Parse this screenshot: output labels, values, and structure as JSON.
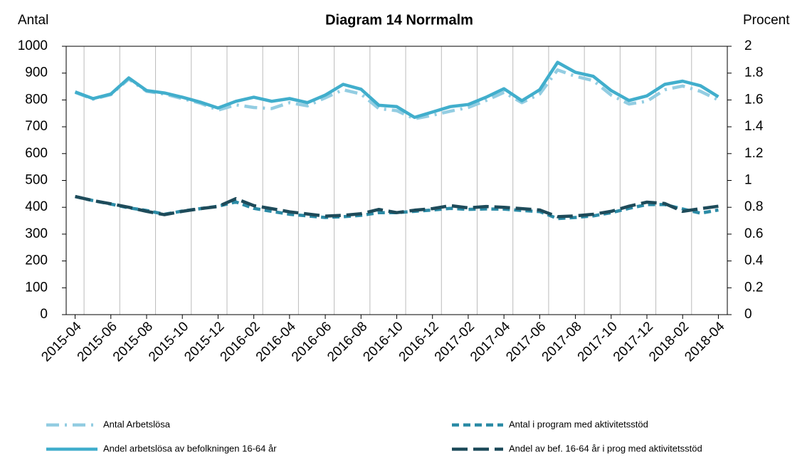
{
  "chart_data": {
    "type": "line",
    "title": "Diagram 14 Norrmalm",
    "y_label": "Antal",
    "y2_label": "Procent",
    "categories": [
      "2015-04",
      null,
      "2015-06",
      null,
      "2015-08",
      null,
      "2015-10",
      null,
      "2015-12",
      null,
      "2016-02",
      null,
      "2016-04",
      null,
      "2016-06",
      null,
      "2016-08",
      null,
      "2016-10",
      null,
      "2016-12",
      null,
      "2017-02",
      null,
      "2017-04",
      null,
      "2017-06",
      null,
      "2017-08",
      null,
      "2017-10",
      null,
      "2017-12",
      null,
      "2018-02",
      null,
      "2018-04"
    ],
    "ylim": [
      0,
      1000
    ],
    "yticks": [
      0,
      100,
      200,
      300,
      400,
      500,
      600,
      700,
      800,
      900,
      1000
    ],
    "y2lim": [
      0,
      2
    ],
    "y2ticks": [
      0,
      0.2,
      0.4,
      0.6,
      0.8,
      1,
      1.2,
      1.4,
      1.6,
      1.8,
      2
    ],
    "grid": true,
    "series": [
      {
        "name": "Antal Arbetslösa",
        "color": "#93cde2",
        "line_style": "dashdot",
        "values": [
          828,
          803,
          820,
          878,
          832,
          822,
          805,
          788,
          762,
          782,
          772,
          768,
          790,
          778,
          808,
          838,
          822,
          768,
          760,
          730,
          743,
          758,
          772,
          798,
          828,
          790,
          822,
          912,
          888,
          872,
          818,
          785,
          795,
          838,
          852,
          832,
          800
        ]
      },
      {
        "name": "Antal i program med aktivitetsstöd",
        "color": "#2b8ba6",
        "line_style": "dashed",
        "values": [
          440,
          425,
          412,
          398,
          388,
          374,
          386,
          395,
          404,
          420,
          396,
          385,
          374,
          368,
          362,
          365,
          370,
          380,
          380,
          385,
          390,
          396,
          392,
          394,
          393,
          388,
          384,
          358,
          362,
          368,
          380,
          396,
          410,
          410,
          394,
          378,
          390
        ]
      },
      {
        "name": "Andel arbetslösa av befolkningen 16-64 år",
        "color": "#41aecc",
        "line_style": "solid",
        "axis": "y2",
        "values": [
          1.66,
          1.61,
          1.644,
          1.764,
          1.67,
          1.652,
          1.62,
          1.584,
          1.54,
          1.59,
          1.62,
          1.59,
          1.61,
          1.58,
          1.636,
          1.716,
          1.68,
          1.56,
          1.55,
          1.47,
          1.51,
          1.55,
          1.566,
          1.62,
          1.684,
          1.594,
          1.676,
          1.88,
          1.806,
          1.776,
          1.67,
          1.596,
          1.63,
          1.716,
          1.74,
          1.706,
          1.624
        ]
      },
      {
        "name": "Andel av bef. 16-64 år i prog med aktivitetsstöd",
        "color": "#1e4b5a",
        "line_style": "longdashed",
        "axis": "y2",
        "values": [
          0.88,
          0.85,
          0.826,
          0.8,
          0.77,
          0.745,
          0.77,
          0.79,
          0.806,
          0.864,
          0.812,
          0.79,
          0.766,
          0.75,
          0.734,
          0.74,
          0.752,
          0.784,
          0.76,
          0.778,
          0.79,
          0.812,
          0.796,
          0.806,
          0.8,
          0.79,
          0.78,
          0.73,
          0.736,
          0.748,
          0.77,
          0.808,
          0.838,
          0.828,
          0.77,
          0.79,
          0.808
        ]
      }
    ]
  }
}
